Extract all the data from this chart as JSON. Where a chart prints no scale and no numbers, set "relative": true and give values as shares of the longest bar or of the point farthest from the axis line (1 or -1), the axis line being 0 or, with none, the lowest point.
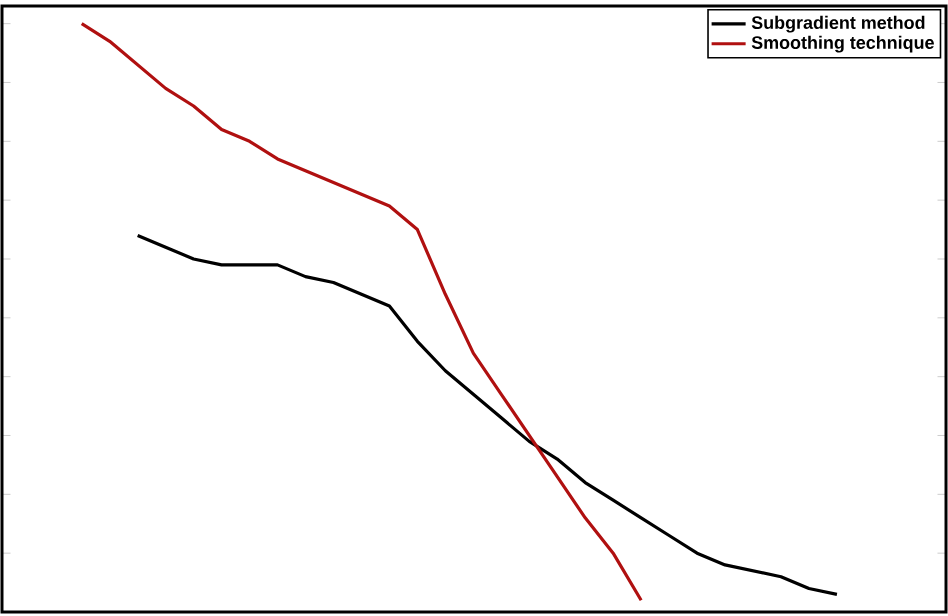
{
  "chart_data": {
    "type": "line",
    "relative": true,
    "legend": "top right",
    "grid": false,
    "marker": "none",
    "line_style": "solid",
    "categories": [
      null,
      null,
      null,
      null,
      null,
      null,
      null,
      null,
      null,
      null,
      null,
      null,
      null,
      null,
      null,
      null,
      null,
      null,
      null,
      null,
      null,
      null,
      null,
      null,
      null,
      null,
      null,
      null
    ],
    "series": [
      {
        "name": "Subgradient method",
        "color": "#000000",
        "values": [
          null,
          null,
          0.64,
          0.62,
          0.6,
          0.59,
          0.59,
          0.59,
          0.57,
          0.56,
          0.54,
          0.52,
          0.46,
          0.41,
          0.37,
          0.33,
          0.29,
          0.26,
          0.22,
          0.19,
          0.16,
          0.13,
          0.1,
          0.08,
          0.07,
          0.06,
          0.04,
          0.03
        ]
      },
      {
        "name": "Smoothing technique",
        "color": "#b01010",
        "values": [
          1.0,
          0.97,
          0.93,
          0.89,
          0.86,
          0.82,
          0.8,
          0.77,
          0.75,
          0.73,
          0.71,
          0.69,
          0.65,
          0.54,
          0.44,
          0.37,
          0.3,
          0.23,
          0.16,
          0.1,
          0.02,
          null,
          null,
          null,
          null,
          null,
          null,
          null
        ]
      }
    ]
  }
}
